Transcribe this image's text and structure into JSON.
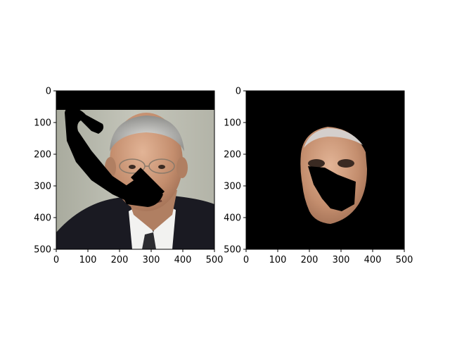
{
  "chart_data": [
    {
      "type": "image",
      "panel": "left",
      "content": "photo of a man in a suit with black occlusion masks",
      "xlim": [
        0,
        500
      ],
      "ylim": [
        500,
        0
      ],
      "xticks": [
        0,
        100,
        200,
        300,
        400,
        500
      ],
      "yticks": [
        0,
        100,
        200,
        300,
        400,
        500
      ],
      "xtick_labels": [
        "0",
        "100",
        "200",
        "300",
        "400",
        "500"
      ],
      "ytick_labels": [
        "0",
        "100",
        "200",
        "300",
        "400",
        "500"
      ],
      "title": "",
      "xlabel": "",
      "ylabel": ""
    },
    {
      "type": "image",
      "panel": "right",
      "content": "segmented face region on black background",
      "xlim": [
        0,
        500
      ],
      "ylim": [
        500,
        0
      ],
      "xticks": [
        0,
        100,
        200,
        300,
        400,
        500
      ],
      "yticks": [
        0,
        100,
        200,
        300,
        400,
        500
      ],
      "xtick_labels": [
        "0",
        "100",
        "200",
        "300",
        "400",
        "500"
      ],
      "ytick_labels": [
        "0",
        "100",
        "200",
        "300",
        "400",
        "500"
      ],
      "title": "",
      "xlabel": "",
      "ylabel": ""
    }
  ]
}
